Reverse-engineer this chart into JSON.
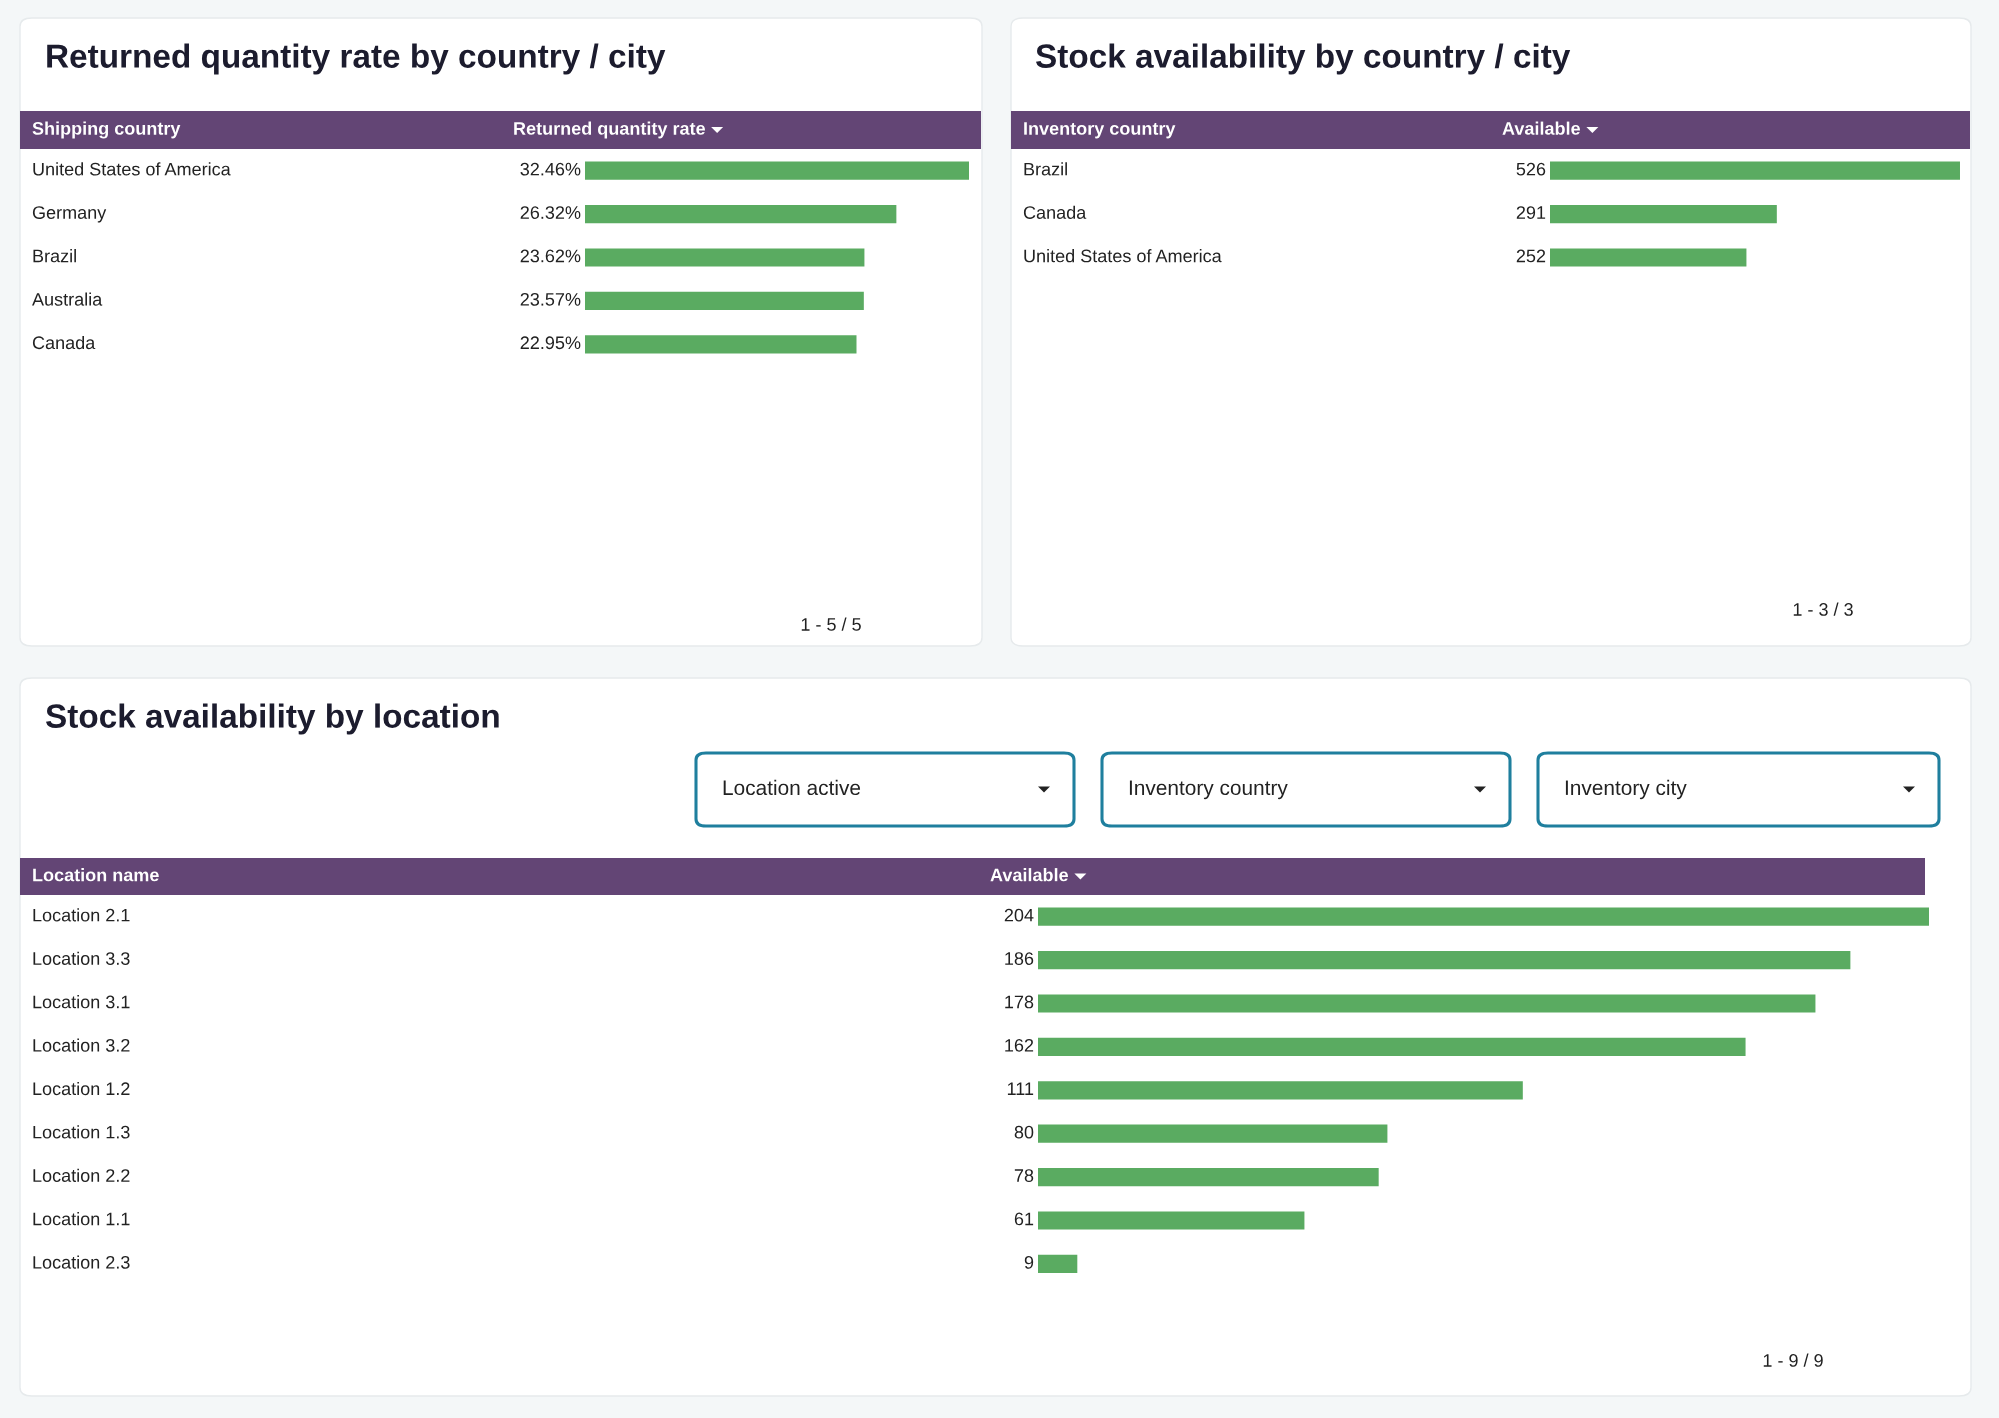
{
  "chart_data": [
    {
      "type": "bar",
      "orientation": "horizontal",
      "title": "Returned quantity rate by country / city",
      "ylabel": "Shipping country",
      "xlabel": "Returned quantity rate",
      "color": "#5aab61",
      "categories": [
        "United States of America",
        "Germany",
        "Brazil",
        "Australia",
        "Canada"
      ],
      "values": [
        32.46,
        26.32,
        23.62,
        23.57,
        22.95
      ],
      "value_labels": [
        "32.46%",
        "26.32%",
        "23.62%",
        "23.57%",
        "22.95%"
      ],
      "annotations": [
        "1 - 5 / 5"
      ]
    },
    {
      "type": "bar",
      "orientation": "horizontal",
      "title": "Stock availability by country / city",
      "ylabel": "Inventory country",
      "xlabel": "Available",
      "color": "#5aab61",
      "categories": [
        "Brazil",
        "Canada",
        "United States of America"
      ],
      "values": [
        526,
        291,
        252
      ],
      "data_labels": true,
      "annotations": [
        "1 - 3 / 3"
      ]
    },
    {
      "type": "bar",
      "orientation": "horizontal",
      "title": "Stock availability by location",
      "ylabel": "Location name",
      "xlabel": "Available",
      "color": "#5aab61",
      "categories": [
        "Location 2.1",
        "Location 3.3",
        "Location 3.1",
        "Location 3.2",
        "Location 1.2",
        "Location 1.3",
        "Location 2.2",
        "Location 1.1",
        "Location 2.3"
      ],
      "values": [
        204,
        186,
        178,
        162,
        111,
        80,
        78,
        61,
        9
      ],
      "data_labels": true,
      "annotations": [
        "Location active",
        "Inventory country",
        "Inventory city",
        "1 - 9 / 9"
      ]
    }
  ]
}
